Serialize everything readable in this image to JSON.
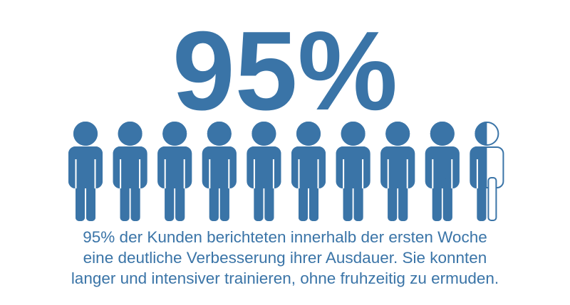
{
  "chart_data": {
    "type": "pictograph",
    "values": [
      95
    ],
    "value_labels": [
      "95%"
    ],
    "ylim": [
      0,
      100
    ],
    "color": "#3a74a7",
    "caption": [
      "95% der Kunden berichteten innerhalb der ersten Woche",
      "eine deutliche Verbesserung ihrer Ausdauer. Sie konnten",
      "langer und intensiver trainieren, ohne fruhzeitig zu ermuden."
    ]
  }
}
